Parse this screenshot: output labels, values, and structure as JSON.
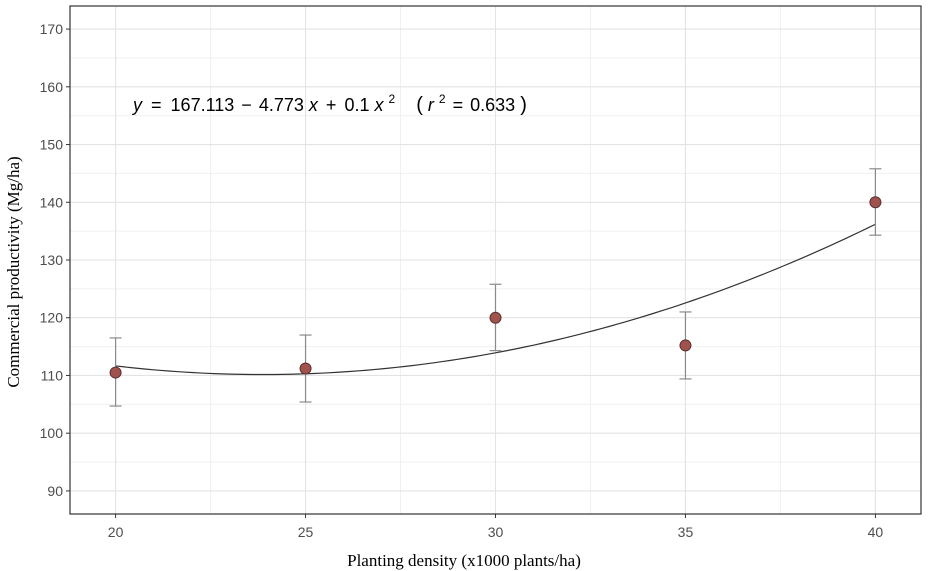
{
  "chart_data": {
    "type": "scatter",
    "xlabel": "Planting density (x1000 plants/ha)",
    "ylabel": "Commercial productivity (Mg/ha)",
    "xlim": [
      18.8,
      41.2
    ],
    "ylim": [
      86,
      174
    ],
    "x_ticks": [
      20,
      25,
      30,
      35,
      40
    ],
    "y_ticks": [
      90,
      100,
      110,
      120,
      130,
      140,
      150,
      160,
      170
    ],
    "grid": true,
    "points": [
      {
        "x": 20,
        "y": 110.5,
        "err_low": 104.7,
        "err_high": 116.5
      },
      {
        "x": 25,
        "y": 111.2,
        "err_low": 105.4,
        "err_high": 117.0
      },
      {
        "x": 30,
        "y": 120.0,
        "err_low": 114.3,
        "err_high": 125.8
      },
      {
        "x": 35,
        "y": 115.2,
        "err_low": 109.4,
        "err_high": 121.0
      },
      {
        "x": 40,
        "y": 140.0,
        "err_low": 134.3,
        "err_high": 145.8
      }
    ],
    "fit": {
      "type": "quadratic",
      "c0": 167.113,
      "c1": -4.773,
      "c2": 0.1,
      "x_range": [
        20,
        40
      ]
    },
    "equation": {
      "y": "y",
      "eq": "=",
      "c0": "167.113",
      "minus": "−",
      "c1": "4.773",
      "x1": "x",
      "plus": "+",
      "c2": "0.1",
      "x2": "x",
      "exp": "2",
      "open": "(",
      "r": "r",
      "r_exp": "2",
      "r_eq": "=",
      "r_val": "0.633",
      "close": ")"
    },
    "colors": {
      "point_fill": "#a0524d",
      "point_stroke": "#5a3030",
      "errorbar": "#8a8a8a",
      "fit_line": "#333333",
      "grid_major": "#e3e3e3",
      "grid_minor": "#f0f0f0",
      "panel_border": "#333333"
    }
  }
}
